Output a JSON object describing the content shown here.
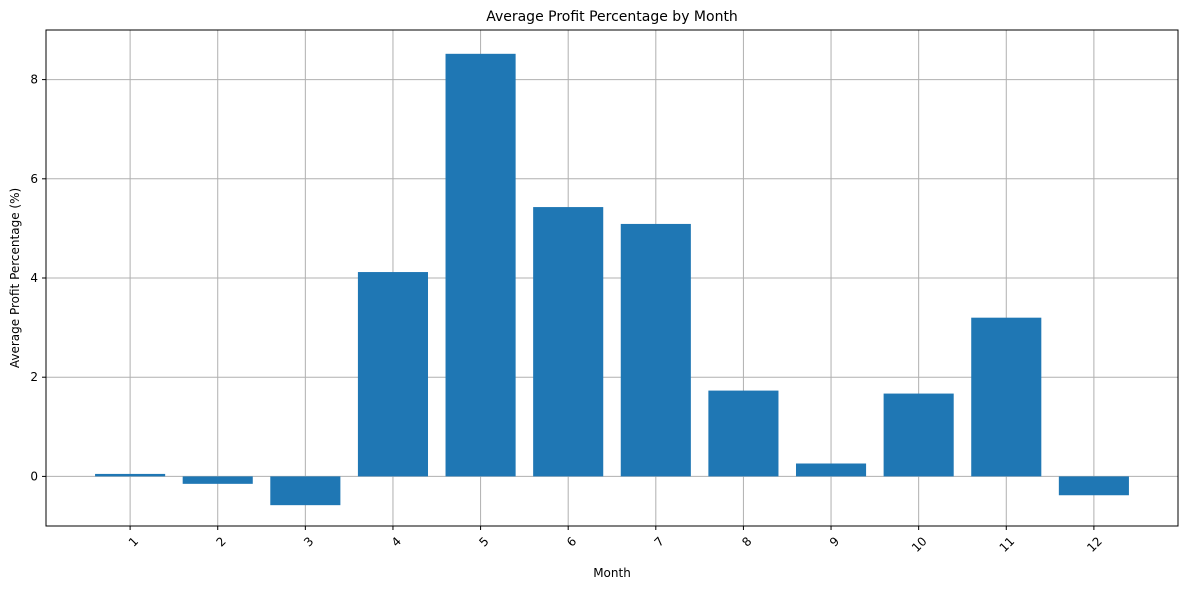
{
  "chart_data": {
    "type": "bar",
    "title": "Average Profit Percentage by Month",
    "xlabel": "Month",
    "ylabel": "Average Profit Percentage (%)",
    "categories": [
      "1",
      "2",
      "3",
      "4",
      "5",
      "6",
      "7",
      "8",
      "9",
      "10",
      "11",
      "12"
    ],
    "values": [
      0.05,
      -0.15,
      -0.58,
      4.12,
      8.52,
      5.43,
      5.09,
      1.73,
      0.26,
      1.67,
      3.2,
      -0.38
    ],
    "ylim": [
      -1.0,
      9.0
    ],
    "yticks": [
      0,
      2,
      4,
      6,
      8
    ],
    "grid": true,
    "x_tick_rotation": 45,
    "bar_color": "#1f77b4",
    "grid_color": "#b0b0b0",
    "legend": "none"
  }
}
